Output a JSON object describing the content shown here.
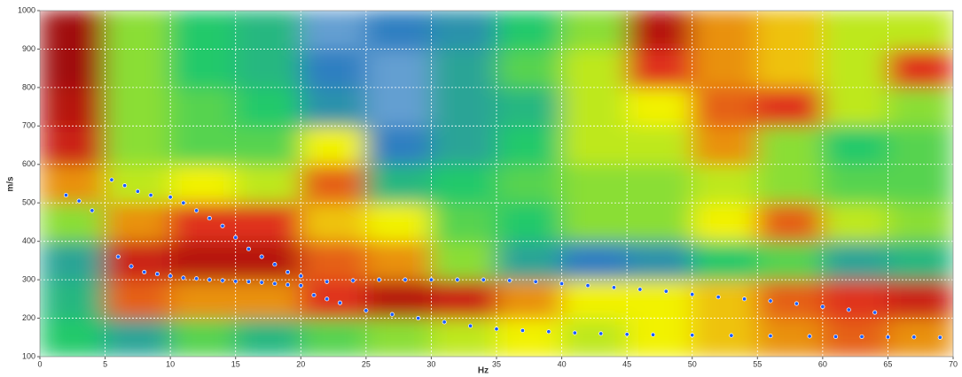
{
  "chart_data": {
    "type": "heatmap",
    "xlabel": "Hz",
    "ylabel": "m/s",
    "xlim": [
      0,
      70
    ],
    "ylim": [
      100,
      1000
    ],
    "xticks": [
      0,
      5,
      10,
      15,
      20,
      25,
      30,
      35,
      40,
      45,
      50,
      55,
      60,
      65,
      70
    ],
    "yticks": [
      100,
      200,
      300,
      400,
      500,
      600,
      700,
      800,
      900,
      1000
    ],
    "grid": true,
    "colorscale": [
      "#ffffff",
      "#2f7fc1",
      "#22c96a",
      "#f2f200",
      "#e0301c",
      "#8b0000"
    ],
    "x": [
      2.5,
      7.5,
      12.5,
      17.5,
      22.5,
      27.5,
      32.5,
      37.5,
      42.5,
      47.5,
      52.5,
      57.5,
      62.5,
      67.5
    ],
    "y": [
      150,
      250,
      350,
      450,
      550,
      650,
      750,
      850,
      950
    ],
    "z": [
      [
        0.4,
        0.3,
        0.45,
        0.35,
        0.45,
        0.5,
        0.55,
        0.6,
        0.55,
        0.6,
        0.65,
        0.7,
        0.75,
        0.7
      ],
      [
        0.35,
        0.75,
        0.7,
        0.7,
        0.8,
        0.9,
        0.85,
        0.7,
        0.6,
        0.6,
        0.65,
        0.75,
        0.8,
        0.85
      ],
      [
        0.3,
        0.85,
        0.9,
        0.9,
        0.75,
        0.7,
        0.5,
        0.3,
        0.2,
        0.25,
        0.4,
        0.45,
        0.3,
        0.35
      ],
      [
        0.5,
        0.7,
        0.8,
        0.8,
        0.65,
        0.6,
        0.45,
        0.4,
        0.5,
        0.5,
        0.6,
        0.75,
        0.55,
        0.5
      ],
      [
        0.7,
        0.55,
        0.6,
        0.55,
        0.75,
        0.35,
        0.4,
        0.45,
        0.5,
        0.5,
        0.55,
        0.5,
        0.45,
        0.45
      ],
      [
        0.85,
        0.5,
        0.45,
        0.45,
        0.6,
        0.2,
        0.3,
        0.4,
        0.55,
        0.55,
        0.7,
        0.5,
        0.4,
        0.45
      ],
      [
        0.9,
        0.5,
        0.45,
        0.4,
        0.25,
        0.15,
        0.3,
        0.35,
        0.55,
        0.6,
        0.75,
        0.8,
        0.55,
        0.5
      ],
      [
        0.95,
        0.5,
        0.4,
        0.35,
        0.2,
        0.15,
        0.3,
        0.45,
        0.55,
        0.8,
        0.7,
        0.65,
        0.55,
        0.8
      ],
      [
        0.95,
        0.5,
        0.4,
        0.35,
        0.15,
        0.2,
        0.25,
        0.4,
        0.5,
        0.9,
        0.7,
        0.65,
        0.55,
        0.55
      ]
    ],
    "series": [
      {
        "color": "#1a5cff",
        "x": [
          2,
          3,
          4,
          6,
          7,
          8,
          9,
          10,
          11,
          12,
          13,
          14,
          15,
          16,
          17,
          18,
          19,
          20,
          22,
          24,
          26,
          28,
          30,
          32,
          34,
          36,
          38,
          40,
          42,
          44,
          46,
          48,
          50,
          52,
          54,
          56,
          58,
          60,
          62,
          64
        ],
        "values": [
          520,
          505,
          480,
          360,
          335,
          320,
          315,
          310,
          305,
          303,
          300,
          298,
          296,
          295,
          293,
          290,
          287,
          285,
          295,
          298,
          300,
          300,
          300,
          300,
          300,
          298,
          295,
          290,
          285,
          280,
          275,
          270,
          262,
          255,
          250,
          245,
          238,
          230,
          222,
          215
        ]
      },
      {
        "color": "#1a5cff",
        "x": [
          5.5,
          6.5,
          7.5,
          8.5,
          10,
          11,
          12,
          13,
          14,
          15,
          16,
          17,
          18,
          19,
          20,
          21,
          22,
          23,
          25,
          27,
          29,
          31,
          33,
          35,
          37,
          39,
          41,
          43,
          45,
          47,
          50,
          53,
          56,
          59,
          61,
          63,
          65,
          67,
          69
        ],
        "values": [
          560,
          545,
          530,
          520,
          515,
          500,
          480,
          460,
          440,
          410,
          380,
          360,
          340,
          320,
          310,
          260,
          250,
          240,
          220,
          210,
          200,
          190,
          180,
          172,
          168,
          165,
          162,
          160,
          158,
          157,
          156,
          155,
          154,
          153,
          152,
          152,
          151,
          151,
          150
        ]
      }
    ]
  }
}
